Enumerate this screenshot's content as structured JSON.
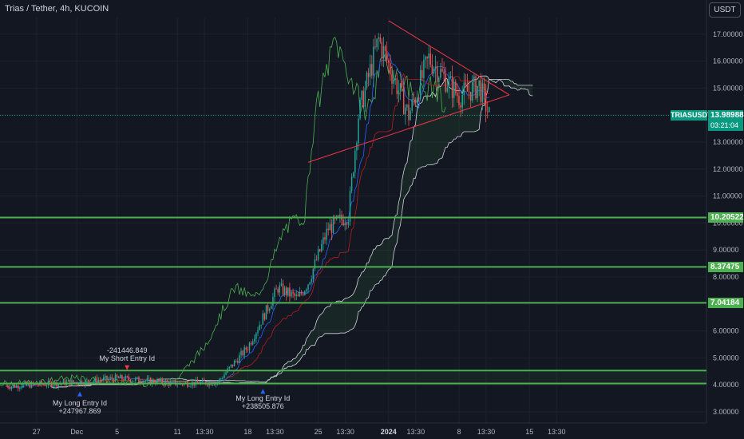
{
  "header": {
    "title": "Trias / Tether, 4h, KUCOIN",
    "currency_button": "USDT"
  },
  "symbol_tag": "TRIASUSDT",
  "last_price": "13.98988",
  "countdown": "03:21:04",
  "colors": {
    "bg": "#131722",
    "grid": "#1e222d",
    "up": "#26a69a",
    "down": "#ef5350",
    "level": "#4caf50",
    "triangle": "#f23645",
    "lagging": "#4caf50",
    "conversion": "#2962ff",
    "base": "#b71c1c",
    "cloud": "#d1d4dc"
  },
  "annotations": [
    {
      "id": "long1",
      "lines": [
        "My Long Entry Id",
        "+247967.869"
      ],
      "arrow": "up"
    },
    {
      "id": "short1",
      "lines": [
        "-241446.849",
        "My Short Entry Id"
      ],
      "arrow": "down"
    },
    {
      "id": "long2",
      "lines": [
        "My Long Entry Id",
        "+238505.876"
      ],
      "arrow": "up"
    }
  ],
  "chart_data": {
    "type": "candlestick",
    "title": "Trias / Tether, 4h, KUCOIN",
    "x_ticks": [
      "27",
      "Dec",
      "5",
      "11",
      "13:30",
      "18",
      "13:30",
      "25",
      "13:30",
      "2024",
      "13:30",
      "8",
      "13:30",
      "15",
      "13:30"
    ],
    "y_ticks": [
      "3.00000",
      "4.00000",
      "5.00000",
      "6.00000",
      "7.00000",
      "8.00000",
      "9.00000",
      "10.00000",
      "11.00000",
      "12.00000",
      "13.00000",
      "14.00000",
      "15.00000",
      "16.00000",
      "17.00000"
    ],
    "ylim": [
      2.8,
      17.9
    ],
    "horizontal_levels": [
      {
        "label": "10.20522",
        "value": 10.20522
      },
      {
        "label": "8.37475",
        "value": 8.37475
      },
      {
        "label": "7.04184",
        "value": 7.04184
      },
      {
        "label": "",
        "value": 4.53
      },
      {
        "label": "",
        "value": 4.05
      }
    ],
    "last_price": 13.98988,
    "triangle_pattern": {
      "upper_start": [
        "Jan 1",
        17.5
      ],
      "lower_start": [
        "Dec 24",
        12.25
      ],
      "apex": [
        "Jan 13",
        14.75
      ]
    },
    "price_path_keypoints": [
      [
        "Nov 24",
        3.95
      ],
      [
        "Dec 1",
        4.1
      ],
      [
        "Dec 5",
        4.25
      ],
      [
        "Dec 11",
        4.05
      ],
      [
        "Dec 15",
        4.1
      ],
      [
        "Dec 18",
        5.4
      ],
      [
        "Dec 21",
        7.6
      ],
      [
        "Dec 23",
        7.2
      ],
      [
        "Dec 24",
        7.8
      ],
      [
        "Dec 26",
        9.8
      ],
      [
        "Dec 28",
        10.3
      ],
      [
        "Dec 29",
        14.0
      ],
      [
        "Dec 31",
        16.8
      ],
      [
        "Jan 3",
        14.0
      ],
      [
        "Jan 5",
        16.1
      ],
      [
        "Jan 8",
        14.7
      ],
      [
        "Jan 10",
        15.1
      ],
      [
        "Jan 11",
        13.99
      ]
    ]
  }
}
